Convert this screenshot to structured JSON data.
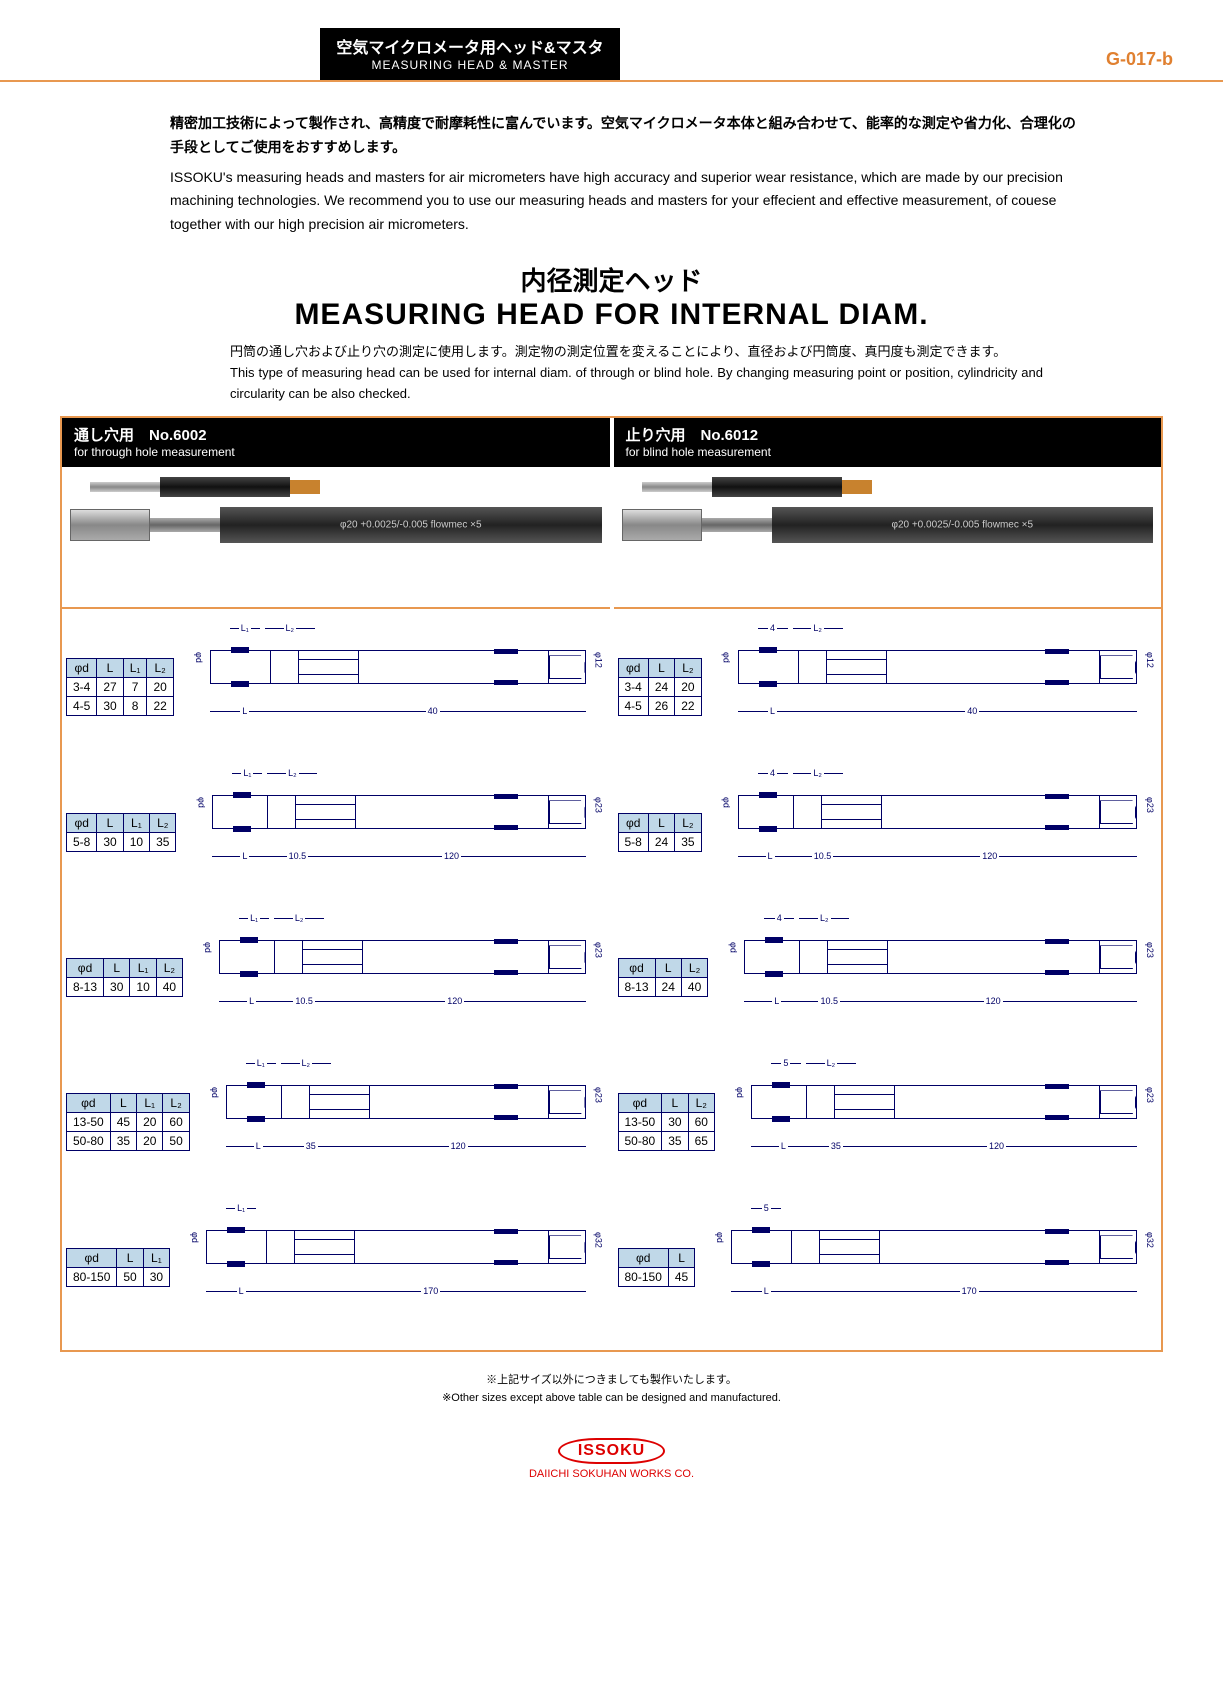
{
  "header": {
    "title_jp": "空気マイクロメータ用ヘッド&マスタ",
    "title_en": "MEASURING HEAD & MASTER",
    "page_no": "G-017-b"
  },
  "intro": {
    "jp": "精密加工技術によって製作され、高精度で耐摩耗性に富んでいます。空気マイクロメータ本体と組み合わせて、能率的な測定や省力化、合理化の手段としてご使用をおすすめします。",
    "en": "ISSOKU's measuring heads and masters for air micrometers have high accuracy and superior wear resistance, which are made by our precision machining technologies. We recommend you to use our measuring heads and masters for your effecient and effective measurement, of couese together with our high precision air micrometers."
  },
  "main_title": {
    "jp": "内径測定ヘッド",
    "en": "MEASURING HEAD FOR INTERNAL DIAM."
  },
  "sub_desc": {
    "jp": "円筒の通し穴および止り穴の測定に使用します。測定物の測定位置を変えることにより、直径および円筒度、真円度も測定できます。",
    "en": "This type of measuring head can be used for internal diam. of through or blind hole. By changing measuring point or position, cylindricity and circularity can be also checked."
  },
  "left_panel": {
    "title_jp": "通し穴用　No.6002",
    "title_en": "for through hole measurement",
    "handle_label": "φ20 +0.0025/-0.005   flowmec ×5",
    "tables": [
      {
        "headers": [
          "φd",
          "L",
          "L₁",
          "L₂"
        ],
        "rows": [
          [
            "3-4",
            "27",
            "7",
            "20"
          ],
          [
            "4-5",
            "30",
            "8",
            "22"
          ]
        ],
        "dim_L_label": "L",
        "dim_ext": "40",
        "dia_r": "φ12",
        "dia_l": "φd",
        "top_labels": [
          "L₁",
          "L₂"
        ]
      },
      {
        "headers": [
          "φd",
          "L",
          "L₁",
          "L₂"
        ],
        "rows": [
          [
            "5-8",
            "30",
            "10",
            "35"
          ]
        ],
        "dim_L_label": "L",
        "dim_ext": "120",
        "dim_mid": "10.5",
        "dia_r": "φ23",
        "dia_l": "φd",
        "top_labels": [
          "L₁",
          "L₂"
        ]
      },
      {
        "headers": [
          "φd",
          "L",
          "L₁",
          "L₂"
        ],
        "rows": [
          [
            "8-13",
            "30",
            "10",
            "40"
          ]
        ],
        "dim_L_label": "L",
        "dim_ext": "120",
        "dim_mid": "10.5",
        "dia_r": "φ23",
        "dia_l": "φd",
        "top_labels": [
          "L₁",
          "L₂"
        ]
      },
      {
        "headers": [
          "φd",
          "L",
          "L₁",
          "L₂"
        ],
        "rows": [
          [
            "13-50",
            "45",
            "20",
            "60"
          ],
          [
            "50-80",
            "35",
            "20",
            "50"
          ]
        ],
        "dim_L_label": "L",
        "dim_ext": "120",
        "dim_mid": "35",
        "dia_r": "φ23",
        "dia_l": "φd",
        "top_labels": [
          "L₁",
          "L₂"
        ]
      },
      {
        "headers": [
          "φd",
          "L",
          "L₁"
        ],
        "rows": [
          [
            "80-150",
            "50",
            "30"
          ]
        ],
        "dim_L_label": "L",
        "dim_ext": "170",
        "dia_r": "φ32",
        "dia_l": "φd",
        "top_labels": [
          "L₁"
        ]
      }
    ]
  },
  "right_panel": {
    "title_jp": "止り穴用　No.6012",
    "title_en": "for blind hole measurement",
    "handle_label": "φ20 +0.0025/-0.005   flowmec ×5",
    "tables": [
      {
        "headers": [
          "φd",
          "L",
          "L₂"
        ],
        "rows": [
          [
            "3-4",
            "24",
            "20"
          ],
          [
            "4-5",
            "26",
            "22"
          ]
        ],
        "dim_L_label": "L",
        "dim_ext": "40",
        "dia_r": "φ12",
        "dia_l": "φd",
        "top_labels": [
          "4",
          "L₂"
        ]
      },
      {
        "headers": [
          "φd",
          "L",
          "L₂"
        ],
        "rows": [
          [
            "5-8",
            "24",
            "35"
          ]
        ],
        "dim_L_label": "L",
        "dim_ext": "120",
        "dim_mid": "10.5",
        "dia_r": "φ23",
        "dia_l": "φd",
        "top_labels": [
          "4",
          "L₂"
        ]
      },
      {
        "headers": [
          "φd",
          "L",
          "L₂"
        ],
        "rows": [
          [
            "8-13",
            "24",
            "40"
          ]
        ],
        "dim_L_label": "L",
        "dim_ext": "120",
        "dim_mid": "10.5",
        "dia_r": "φ23",
        "dia_l": "φd",
        "top_labels": [
          "4",
          "L₂"
        ]
      },
      {
        "headers": [
          "φd",
          "L",
          "L₂"
        ],
        "rows": [
          [
            "13-50",
            "30",
            "60"
          ],
          [
            "50-80",
            "35",
            "65"
          ]
        ],
        "dim_L_label": "L",
        "dim_ext": "120",
        "dim_mid": "35",
        "dia_r": "φ23",
        "dia_l": "φd",
        "top_labels": [
          "5",
          "L₂"
        ]
      },
      {
        "headers": [
          "φd",
          "L"
        ],
        "rows": [
          [
            "80-150",
            "45"
          ]
        ],
        "dim_L_label": "L",
        "dim_ext": "170",
        "dia_r": "φ32",
        "dia_l": "φd",
        "top_labels": [
          "5"
        ]
      }
    ]
  },
  "footnote": {
    "jp": "※上記サイズ以外につきましても製作いたします。",
    "en": "※Other sizes except above table can be designed and manufactured."
  },
  "logo": {
    "brand": "ISSOKU",
    "company": "DAIICHI SOKUHAN WORKS CO."
  }
}
